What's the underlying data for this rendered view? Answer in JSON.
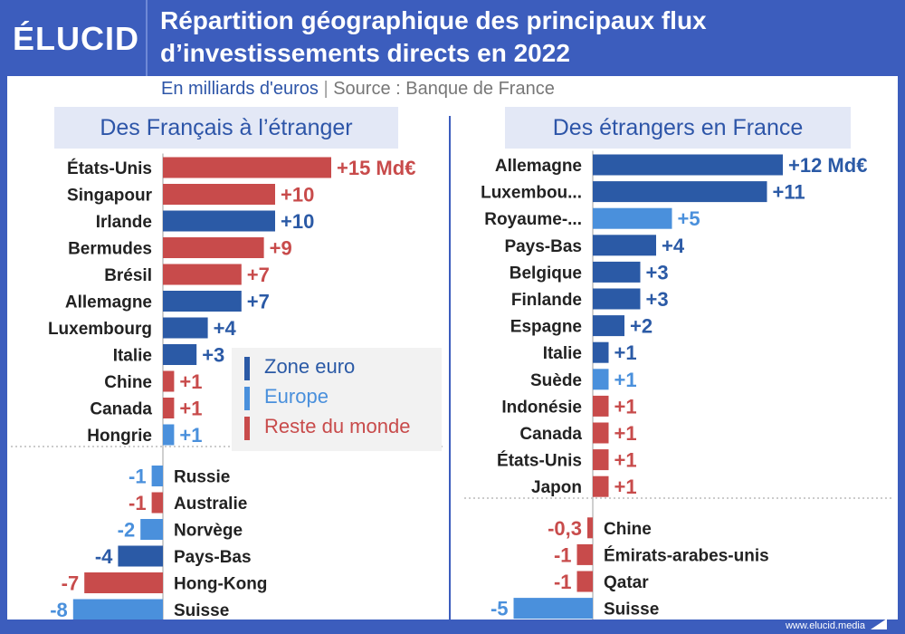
{
  "logo": "ÉLUCID",
  "title_line1": "Répartition géographique des principaux flux",
  "title_line2": "d’investissements directs en 2022",
  "subtitle_unit": "En milliards d'euros",
  "subtitle_sep": "|",
  "subtitle_source": "Source : Banque de France",
  "footer_url": "www.elucid.media",
  "colors": {
    "zone_euro": "#2b5aa6",
    "europe": "#4a90dc",
    "reste_du_monde": "#c84b4b",
    "brand": "#3c5dbd"
  },
  "legend": [
    {
      "label": "Zone euro",
      "color": "#2b5aa6"
    },
    {
      "label": "Europe",
      "color": "#4a90dc"
    },
    {
      "label": "Reste du monde",
      "color": "#c84b4b"
    }
  ],
  "chart_data": [
    {
      "type": "bar",
      "title": "Des Français à l’étranger",
      "orientation": "horizontal",
      "unit_suffix_first": " Md€",
      "bars": [
        {
          "label": "États-Unis",
          "value": 15,
          "group": "reste_du_monde",
          "value_label": "+15 Md€"
        },
        {
          "label": "Singapour",
          "value": 10,
          "group": "reste_du_monde",
          "value_label": "+10"
        },
        {
          "label": "Irlande",
          "value": 10,
          "group": "zone_euro",
          "value_label": "+10"
        },
        {
          "label": "Bermudes",
          "value": 9,
          "group": "reste_du_monde",
          "value_label": "+9"
        },
        {
          "label": "Brésil",
          "value": 7,
          "group": "reste_du_monde",
          "value_label": "+7"
        },
        {
          "label": "Allemagne",
          "value": 7,
          "group": "zone_euro",
          "value_label": "+7"
        },
        {
          "label": "Luxembourg",
          "value": 4,
          "group": "zone_euro",
          "value_label": "+4"
        },
        {
          "label": "Italie",
          "value": 3,
          "group": "zone_euro",
          "value_label": "+3"
        },
        {
          "label": "Chine",
          "value": 1,
          "group": "reste_du_monde",
          "value_label": "+1"
        },
        {
          "label": "Canada",
          "value": 1,
          "group": "reste_du_monde",
          "value_label": "+1"
        },
        {
          "label": "Hongrie",
          "value": 1,
          "group": "europe",
          "value_label": "+1"
        },
        {
          "label": "Russie",
          "value": -1,
          "group": "europe",
          "value_label": "-1"
        },
        {
          "label": "Australie",
          "value": -1,
          "group": "reste_du_monde",
          "value_label": "-1"
        },
        {
          "label": "Norvège",
          "value": -2,
          "group": "europe",
          "value_label": "-2"
        },
        {
          "label": "Pays-Bas",
          "value": -4,
          "group": "zone_euro",
          "value_label": "-4"
        },
        {
          "label": "Hong-Kong",
          "value": -7,
          "group": "reste_du_monde",
          "value_label": "-7"
        },
        {
          "label": "Suisse",
          "value": -8,
          "group": "europe",
          "value_label": "-8"
        }
      ]
    },
    {
      "type": "bar",
      "title": "Des étrangers en France",
      "orientation": "horizontal",
      "bars": [
        {
          "label": "Allemagne",
          "value": 12,
          "group": "zone_euro",
          "value_label": "+12 Md€"
        },
        {
          "label": "Luxembou...",
          "value": 11,
          "group": "zone_euro",
          "value_label": "+11"
        },
        {
          "label": "Royaume-...",
          "value": 5,
          "group": "europe",
          "value_label": "+5"
        },
        {
          "label": "Pays-Bas",
          "value": 4,
          "group": "zone_euro",
          "value_label": "+4"
        },
        {
          "label": "Belgique",
          "value": 3,
          "group": "zone_euro",
          "value_label": "+3"
        },
        {
          "label": "Finlande",
          "value": 3,
          "group": "zone_euro",
          "value_label": "+3"
        },
        {
          "label": "Espagne",
          "value": 2,
          "group": "zone_euro",
          "value_label": "+2"
        },
        {
          "label": "Italie",
          "value": 1,
          "group": "zone_euro",
          "value_label": "+1"
        },
        {
          "label": "Suède",
          "value": 1,
          "group": "europe",
          "value_label": "+1"
        },
        {
          "label": "Indonésie",
          "value": 1,
          "group": "reste_du_monde",
          "value_label": "+1"
        },
        {
          "label": "Canada",
          "value": 1,
          "group": "reste_du_monde",
          "value_label": "+1"
        },
        {
          "label": "États-Unis",
          "value": 1,
          "group": "reste_du_monde",
          "value_label": "+1"
        },
        {
          "label": "Japon",
          "value": 1,
          "group": "reste_du_monde",
          "value_label": "+1"
        },
        {
          "label": "Chine",
          "value": -0.3,
          "group": "reste_du_monde",
          "value_label": "-0,3"
        },
        {
          "label": "Émirats-arabes-unis",
          "value": -1,
          "group": "reste_du_monde",
          "value_label": "-1"
        },
        {
          "label": "Qatar",
          "value": -1,
          "group": "reste_du_monde",
          "value_label": "-1"
        },
        {
          "label": "Suisse",
          "value": -5,
          "group": "europe",
          "value_label": "-5"
        }
      ]
    }
  ]
}
